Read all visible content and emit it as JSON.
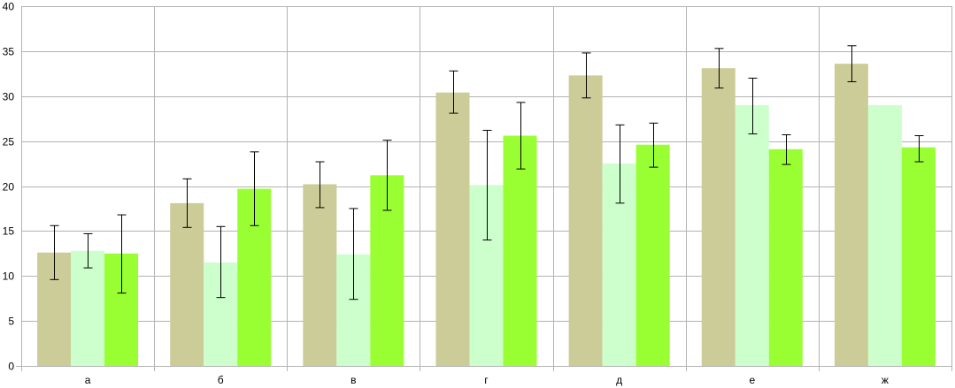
{
  "chart_data": {
    "type": "bar",
    "title": "",
    "xlabel": "",
    "ylabel": "",
    "categories": [
      "а",
      "б",
      "в",
      "г",
      "д",
      "е",
      "ж"
    ],
    "ylim": [
      0,
      40
    ],
    "yticks": [
      0,
      5,
      10,
      15,
      20,
      25,
      30,
      35,
      40
    ],
    "ytick_labels": [
      "0",
      "5",
      "10",
      "15",
      "20",
      "25",
      "30",
      "35",
      "40"
    ],
    "grid": true,
    "legend": "none",
    "series": [
      {
        "color": "#cccc99",
        "values": [
          12.6,
          18.1,
          20.2,
          30.4,
          32.3,
          33.1,
          33.6
        ],
        "err_low": [
          9.6,
          15.4,
          17.6,
          28.1,
          29.8,
          30.9,
          31.6
        ],
        "err_high": [
          15.6,
          20.8,
          22.7,
          32.8,
          34.8,
          35.3,
          35.6
        ]
      },
      {
        "color": "#ccffcc",
        "values": [
          12.8,
          11.5,
          12.4,
          20.1,
          22.5,
          29.0,
          29.0
        ],
        "err_low": [
          10.9,
          7.6,
          7.4,
          14.0,
          18.1,
          25.8,
          null
        ],
        "err_high": [
          14.7,
          15.5,
          17.5,
          26.2,
          26.8,
          32.0,
          null
        ]
      },
      {
        "color": "#99ff33",
        "values": [
          12.5,
          19.7,
          21.2,
          25.6,
          24.6,
          24.1,
          24.3
        ],
        "err_low": [
          8.1,
          15.6,
          17.3,
          21.9,
          22.1,
          22.4,
          22.7
        ],
        "err_high": [
          16.8,
          23.8,
          25.1,
          29.3,
          27.0,
          25.7,
          25.6
        ]
      }
    ]
  }
}
